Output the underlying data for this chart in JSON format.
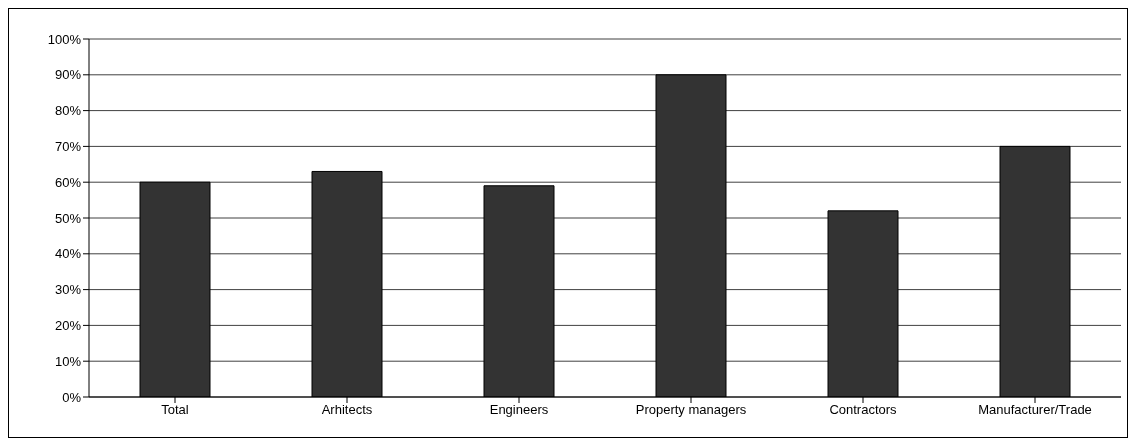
{
  "chart_data": {
    "type": "bar",
    "categories": [
      "Total",
      "Arhitects",
      "Engineers",
      "Property managers",
      "Contractors",
      "Manufacturer/Trade"
    ],
    "values": [
      60,
      63,
      59,
      90,
      52,
      70
    ],
    "color": "#333333",
    "ylim": [
      0,
      100
    ],
    "yticks": [
      {
        "value": 0,
        "label": "0%"
      },
      {
        "value": 10,
        "label": "10%"
      },
      {
        "value": 20,
        "label": "20%"
      },
      {
        "value": 30,
        "label": "30%"
      },
      {
        "value": 40,
        "label": "40%"
      },
      {
        "value": 50,
        "label": "50%"
      },
      {
        "value": 60,
        "label": "60%"
      },
      {
        "value": 70,
        "label": "70%"
      },
      {
        "value": 80,
        "label": "80%"
      },
      {
        "value": 90,
        "label": "90%"
      },
      {
        "value": 100,
        "label": "100%"
      }
    ],
    "grid": "y"
  }
}
